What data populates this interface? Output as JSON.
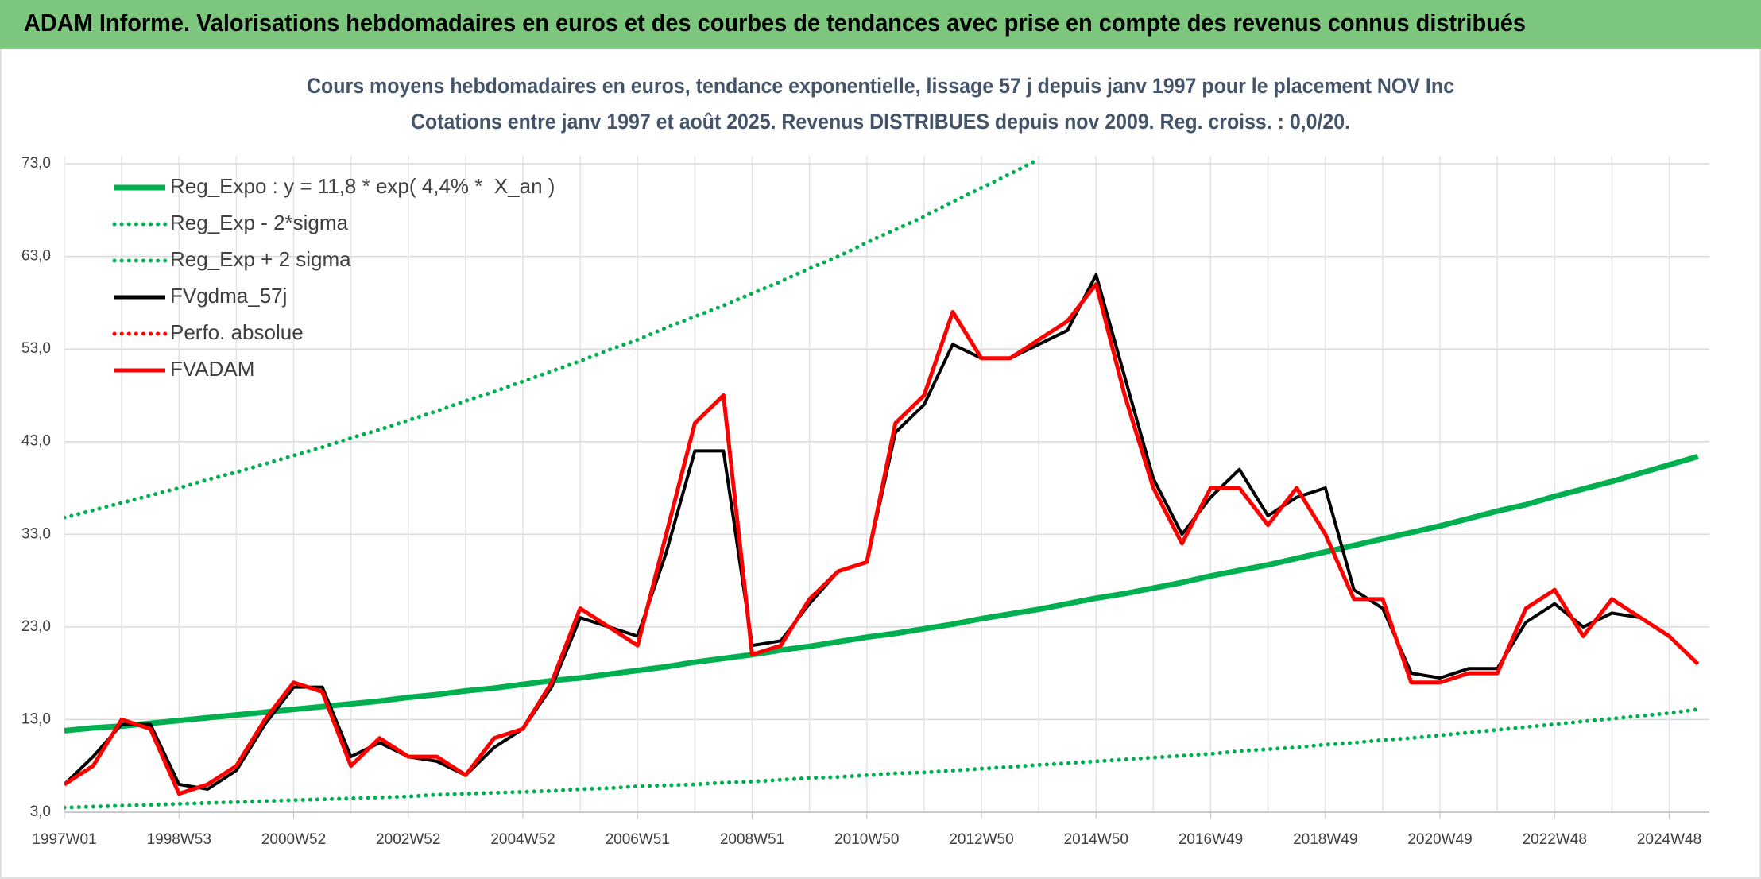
{
  "header": {
    "title": "ADAM Informe. Valorisations hebdomadaires en euros et des courbes de tendances avec prise en compte des revenus connus distribués"
  },
  "chart_data": {
    "type": "line",
    "title": "Cours moyens hebdomadaires en euros, tendance exponentielle, lissage 57 j depuis janv 1997 pour le placement NOV Inc",
    "subtitle": "Cotations entre janv 1997 et août 2025. Revenus DISTRIBUES depuis nov 2009. Reg. croiss. : 0,0/20.",
    "categories": [
      "1997W01",
      null,
      null,
      null,
      "1998W53",
      null,
      null,
      null,
      "2000W52",
      null,
      null,
      null,
      "2002W52",
      null,
      null,
      null,
      "2004W52",
      null,
      null,
      null,
      "2006W51",
      null,
      null,
      null,
      "2008W51",
      null,
      null,
      null,
      "2010W50",
      null,
      null,
      null,
      "2012W50",
      null,
      null,
      null,
      "2014W50",
      null,
      null,
      null,
      "2016W49",
      null,
      null,
      null,
      "2018W49",
      null,
      null,
      null,
      "2020W49",
      null,
      null,
      null,
      "2022W48",
      null,
      null,
      null,
      "2024W48",
      null
    ],
    "ylim": [
      3,
      73
    ],
    "yticks": [
      {
        "value": 3,
        "label": "3,0"
      },
      {
        "value": 13,
        "label": "13,0"
      },
      {
        "value": 23,
        "label": "23,0"
      },
      {
        "value": 33,
        "label": "33,0"
      },
      {
        "value": 43,
        "label": "43,0"
      },
      {
        "value": 53,
        "label": "53,0"
      },
      {
        "value": 63,
        "label": "63,0"
      },
      {
        "value": 73,
        "label": "73,0"
      }
    ],
    "grid": true,
    "legend": "upper left",
    "series": [
      {
        "name": "Reg_Expo : y = 11,8 * exp( 4,4% *  X_an )",
        "color": "#00b050",
        "style": "solid",
        "values": [
          11.8,
          12.1,
          12.3,
          12.6,
          12.9,
          13.2,
          13.5,
          13.8,
          14.1,
          14.4,
          14.7,
          15.0,
          15.4,
          15.7,
          16.1,
          16.4,
          16.8,
          17.2,
          17.5,
          17.9,
          18.3,
          18.7,
          19.2,
          19.6,
          20.0,
          20.5,
          20.9,
          21.4,
          21.9,
          22.3,
          22.8,
          23.3,
          23.9,
          24.4,
          24.9,
          25.5,
          26.1,
          26.6,
          27.2,
          27.8,
          28.5,
          29.1,
          29.7,
          30.4,
          31.1,
          31.8,
          32.5,
          33.2,
          33.9,
          34.7,
          35.5,
          36.2,
          37.1,
          37.9,
          38.7,
          39.6,
          40.5,
          41.4
        ]
      },
      {
        "name": "Reg_Exp - 2*sigma",
        "color": "#00b050",
        "style": "dotted",
        "values": [
          3.5,
          3.6,
          3.7,
          3.8,
          3.9,
          4.0,
          4.1,
          4.2,
          4.3,
          4.4,
          4.5,
          4.6,
          4.7,
          4.9,
          5.0,
          5.1,
          5.2,
          5.3,
          5.5,
          5.6,
          5.8,
          5.9,
          6.0,
          6.2,
          6.3,
          6.5,
          6.7,
          6.8,
          7.0,
          7.2,
          7.3,
          7.5,
          7.7,
          7.9,
          8.1,
          8.3,
          8.5,
          8.7,
          8.9,
          9.1,
          9.3,
          9.6,
          9.8,
          10.0,
          10.3,
          10.5,
          10.8,
          11.0,
          11.3,
          11.6,
          11.9,
          12.2,
          12.5,
          12.8,
          13.1,
          13.4,
          13.7,
          14.1
        ]
      },
      {
        "name": "Reg_Exp + 2 sigma",
        "color": "#00b050",
        "style": "dotted",
        "values": [
          34.8,
          35.6,
          36.4,
          37.2,
          38.0,
          38.9,
          39.7,
          40.6,
          41.5,
          42.4,
          43.4,
          44.3,
          45.3,
          46.3,
          47.4,
          48.4,
          49.5,
          50.6,
          51.7,
          52.9,
          54.0,
          55.3,
          56.5,
          57.7,
          59.0,
          60.3,
          61.7,
          63.0,
          64.5,
          65.9,
          67.3,
          68.9,
          70.4,
          71.9,
          73.5,
          null,
          null,
          null,
          null,
          null,
          null,
          null,
          null,
          null,
          null,
          null,
          null,
          null,
          null,
          null,
          null,
          null,
          null,
          null,
          null,
          null,
          null,
          null
        ]
      },
      {
        "name": "FVgdma_57j",
        "color": "#000000",
        "style": "solid",
        "values": [
          6,
          9,
          12.5,
          12.5,
          6,
          5.5,
          7.5,
          12.5,
          16.5,
          16.5,
          9,
          10.5,
          9,
          8.5,
          7,
          10,
          12,
          16.5,
          24,
          23,
          22,
          31,
          42,
          42,
          21,
          21.5,
          25.5,
          29,
          30,
          44,
          47,
          53.5,
          52,
          52,
          53.5,
          55,
          61,
          50,
          39,
          33,
          37,
          40,
          35,
          37,
          38,
          27,
          25,
          18,
          17.5,
          18.5,
          18.5,
          23.5,
          25.5,
          23,
          24.5,
          24,
          22,
          19
        ]
      },
      {
        "name": "Perfo. absolue",
        "color": "#ff0000",
        "style": "dotted",
        "values": [
          null,
          null,
          null,
          null,
          null,
          null,
          null,
          null,
          null,
          null,
          null,
          null,
          null,
          null,
          null,
          null,
          null,
          null,
          null,
          null,
          null,
          null,
          null,
          null,
          null,
          null,
          null,
          null,
          null,
          null,
          null,
          null,
          null,
          null,
          null,
          null,
          null,
          null,
          null,
          null,
          null,
          null,
          null,
          null,
          null,
          null,
          null,
          null,
          null,
          null,
          null,
          null,
          null,
          null,
          null,
          null,
          null,
          null
        ]
      },
      {
        "name": "FVADAM",
        "color": "#ff0000",
        "style": "solid",
        "values": [
          6,
          8,
          13,
          12,
          5,
          6,
          8,
          13,
          17,
          16,
          8,
          11,
          9,
          9,
          7,
          11,
          12,
          17,
          25,
          23,
          21,
          33,
          45,
          48,
          20,
          21,
          26,
          29,
          30,
          45,
          48,
          57,
          52,
          52,
          54,
          56,
          60,
          48,
          38,
          32,
          38,
          38,
          34,
          38,
          33,
          26,
          26,
          17,
          17,
          18,
          18,
          25,
          27,
          22,
          26,
          24,
          22,
          19
        ]
      }
    ]
  }
}
